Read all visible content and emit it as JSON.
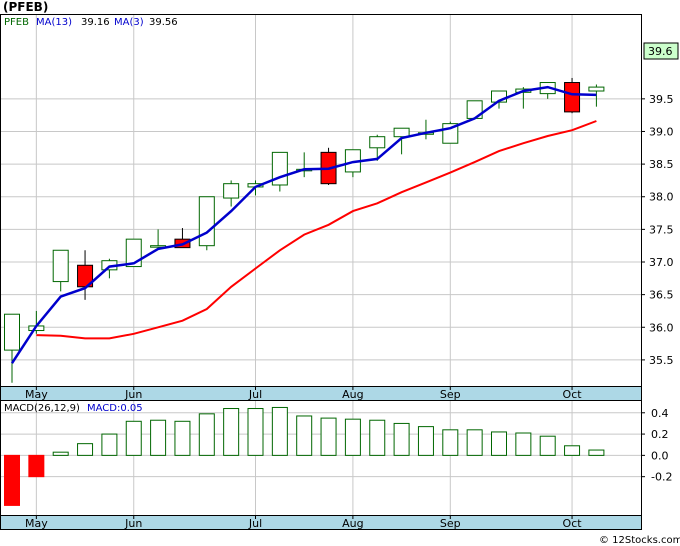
{
  "header": {
    "title": "(PFEB)",
    "symbol_label": "PFEB",
    "ma13_label": "MA(13)",
    "ma13_value": "39.16",
    "ma3_label": "MA(3)",
    "ma3_value": "39.56"
  },
  "macd_header": {
    "label": "MACD(26,12,9)",
    "value_label": "MACD:0.05"
  },
  "last_price_tag": "39.6",
  "watermark": "© 12Stocks.com",
  "colors": {
    "up_candle": "#006600",
    "down_candle": "#ff0000",
    "ma13": "#0000cc",
    "ma3": "#ff0000",
    "axis_band": "#add8e6",
    "grid": "#c8c8c8",
    "price_tag_bg": "#ccffcc"
  },
  "chart_data": [
    {
      "type": "candlestick",
      "title": "(PFEB)",
      "ylim": [
        35.1,
        40.8
      ],
      "yticks": [
        "35.5",
        "36.0",
        "36.5",
        "37.0",
        "37.5",
        "38.0",
        "38.5",
        "39.0",
        "39.5"
      ],
      "xticks": [
        "May",
        "Jun",
        "Jul",
        "Aug",
        "Sep",
        "Oct"
      ],
      "xtick_week_index": [
        1,
        5,
        10,
        14,
        18,
        23
      ],
      "candles": [
        {
          "o": 35.65,
          "h": 36.2,
          "l": 35.15,
          "c": 36.2
        },
        {
          "o": 35.95,
          "h": 36.25,
          "l": 35.9,
          "c": 36.02
        },
        {
          "o": 36.7,
          "h": 37.18,
          "l": 36.55,
          "c": 37.18
        },
        {
          "o": 36.95,
          "h": 37.18,
          "l": 36.42,
          "c": 36.62
        },
        {
          "o": 36.88,
          "h": 37.05,
          "l": 36.75,
          "c": 37.02
        },
        {
          "o": 36.93,
          "h": 37.35,
          "l": 36.93,
          "c": 37.35
        },
        {
          "o": 37.25,
          "h": 37.5,
          "l": 37.2,
          "c": 37.25
        },
        {
          "o": 37.35,
          "h": 37.52,
          "l": 37.22,
          "c": 37.22
        },
        {
          "o": 37.25,
          "h": 38.0,
          "l": 37.18,
          "c": 38.0
        },
        {
          "o": 37.98,
          "h": 38.25,
          "l": 37.85,
          "c": 38.2
        },
        {
          "o": 38.15,
          "h": 38.25,
          "l": 38.02,
          "c": 38.2
        },
        {
          "o": 38.18,
          "h": 38.68,
          "l": 38.08,
          "c": 38.68
        },
        {
          "o": 38.42,
          "h": 38.68,
          "l": 38.3,
          "c": 38.42
        },
        {
          "o": 38.68,
          "h": 38.75,
          "l": 38.18,
          "c": 38.2
        },
        {
          "o": 38.38,
          "h": 38.72,
          "l": 38.3,
          "c": 38.72
        },
        {
          "o": 38.75,
          "h": 38.95,
          "l": 38.55,
          "c": 38.92
        },
        {
          "o": 38.92,
          "h": 39.05,
          "l": 38.65,
          "c": 39.05
        },
        {
          "o": 38.98,
          "h": 39.18,
          "l": 38.88,
          "c": 38.98
        },
        {
          "o": 38.82,
          "h": 39.15,
          "l": 38.82,
          "c": 39.12
        },
        {
          "o": 39.2,
          "h": 39.47,
          "l": 39.2,
          "c": 39.47
        },
        {
          "o": 39.45,
          "h": 39.62,
          "l": 39.35,
          "c": 39.62
        },
        {
          "o": 39.6,
          "h": 39.68,
          "l": 39.35,
          "c": 39.65
        },
        {
          "o": 39.58,
          "h": 39.75,
          "l": 39.5,
          "c": 39.75
        },
        {
          "o": 39.75,
          "h": 39.82,
          "l": 39.28,
          "c": 39.3
        },
        {
          "o": 39.62,
          "h": 39.72,
          "l": 39.38,
          "c": 39.68
        }
      ],
      "series": [
        {
          "name": "MA(13)",
          "values": [
            null,
            35.88,
            35.87,
            35.83,
            35.83,
            35.9,
            36.0,
            36.1,
            36.28,
            36.62,
            36.9,
            37.18,
            37.42,
            37.57,
            37.78,
            37.9,
            38.07,
            38.22,
            38.37,
            38.53,
            38.7,
            38.82,
            38.93,
            39.02,
            39.16
          ]
        },
        {
          "name": "MA(3)",
          "values": [
            35.45,
            36.02,
            36.47,
            36.6,
            36.93,
            36.98,
            37.2,
            37.27,
            37.45,
            37.78,
            38.15,
            38.3,
            38.42,
            38.43,
            38.53,
            38.58,
            38.9,
            38.98,
            39.05,
            39.2,
            39.47,
            39.62,
            39.68,
            39.57,
            39.56
          ]
        }
      ]
    },
    {
      "type": "bar",
      "title": "MACD(26,12,9)",
      "ylim": [
        -0.56,
        0.52
      ],
      "yticks": [
        "0.4",
        "0.2",
        "0.0",
        "-0.2"
      ],
      "xticks": [
        "May",
        "Jun",
        "Jul",
        "Aug",
        "Sep",
        "Oct"
      ],
      "values": [
        -0.47,
        -0.2,
        0.03,
        0.11,
        0.2,
        0.32,
        0.33,
        0.32,
        0.39,
        0.44,
        0.44,
        0.45,
        0.37,
        0.35,
        0.34,
        0.33,
        0.3,
        0.27,
        0.24,
        0.24,
        0.22,
        0.21,
        0.18,
        0.09,
        0.05
      ]
    }
  ]
}
